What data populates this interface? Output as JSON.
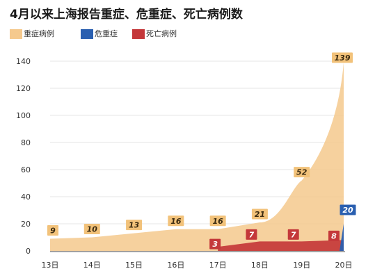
{
  "title": "4月以来上海报告重症、危重症、死亡病例数",
  "colors": {
    "severe": "#f5c98d",
    "severe_label": "#f2c27a",
    "critical": "#2a5fb0",
    "death": "#c4383a",
    "grid": "#e4e4e4",
    "axis": "#555555"
  },
  "chart_data": {
    "type": "area",
    "title": "4月以来上海报告重症、危重症、死亡病例数",
    "x": [
      "13日",
      "14日",
      "15日",
      "16日",
      "17日",
      "18日",
      "19日",
      "20日"
    ],
    "ylim": [
      0,
      140
    ],
    "yticks": [
      0,
      20,
      40,
      60,
      80,
      100,
      120,
      140
    ],
    "grid": true,
    "legend_position": "top-left",
    "series": [
      {
        "name": "重症病例",
        "color": "#f5c98d",
        "values": [
          9,
          10,
          13,
          16,
          16,
          21,
          52,
          139
        ]
      },
      {
        "name": "危重症",
        "color": "#2a5fb0",
        "values": [
          null,
          null,
          null,
          null,
          null,
          null,
          null,
          20
        ]
      },
      {
        "name": "死亡病例",
        "color": "#c4383a",
        "values": [
          null,
          null,
          null,
          null,
          3,
          7,
          7,
          8
        ]
      }
    ]
  }
}
